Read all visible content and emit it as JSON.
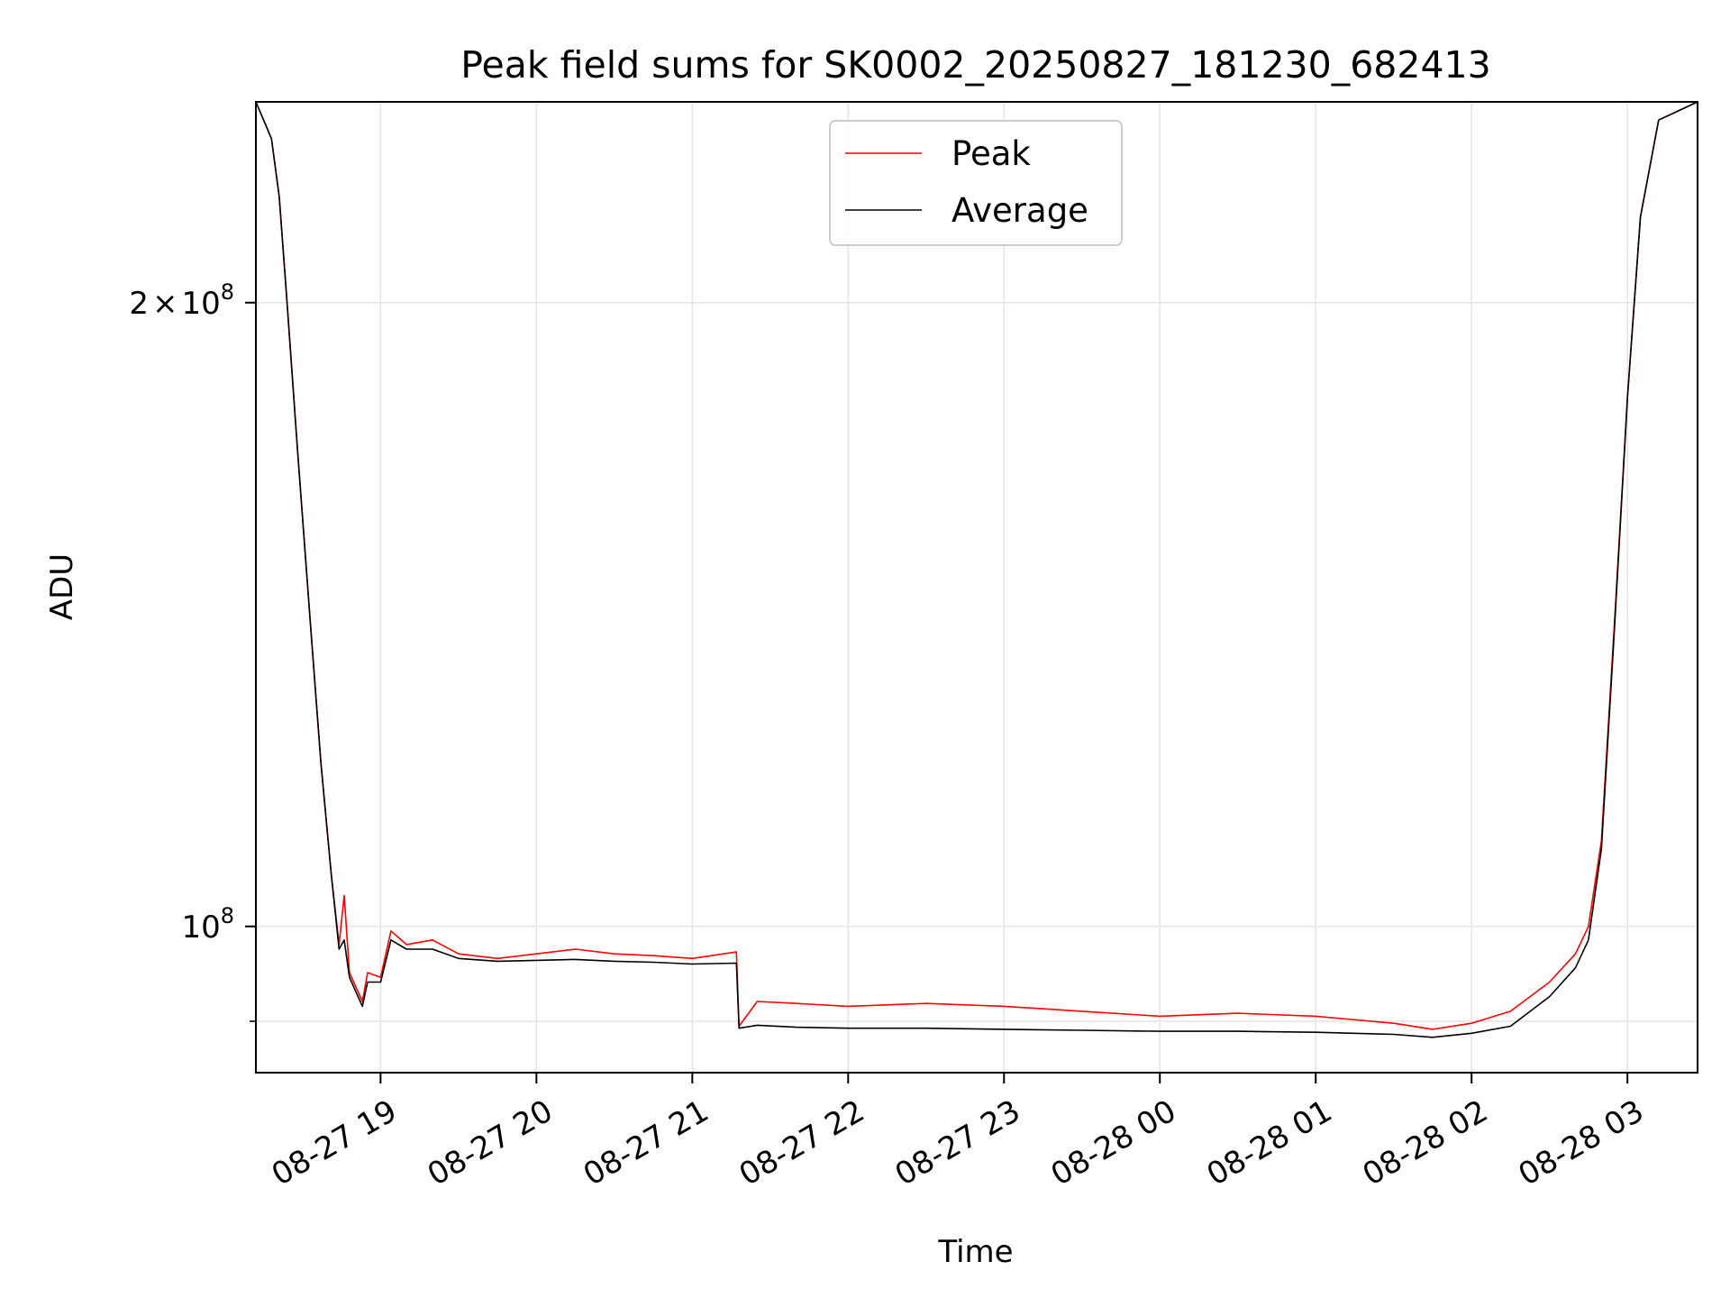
{
  "chart_data": {
    "type": "line",
    "title": "Peak field sums for SK0002_20250827_181230_682413",
    "xlabel": "Time",
    "ylabel": "ADU",
    "y_scale": "log",
    "grid": true,
    "legend_position": "upper center",
    "xlim": [
      "2025-08-27 18:12",
      "2025-08-28 03:27"
    ],
    "ylim": [
      85000000,
      250000000
    ],
    "x_ticks": [
      {
        "value": "2025-08-27 19:00",
        "label": "08-27 19"
      },
      {
        "value": "2025-08-27 20:00",
        "label": "08-27 20"
      },
      {
        "value": "2025-08-27 21:00",
        "label": "08-27 21"
      },
      {
        "value": "2025-08-27 22:00",
        "label": "08-27 22"
      },
      {
        "value": "2025-08-27 23:00",
        "label": "08-27 23"
      },
      {
        "value": "2025-08-28 00:00",
        "label": "08-28 00"
      },
      {
        "value": "2025-08-28 01:00",
        "label": "08-28 01"
      },
      {
        "value": "2025-08-28 02:00",
        "label": "08-28 02"
      },
      {
        "value": "2025-08-28 03:00",
        "label": "08-28 03"
      }
    ],
    "y_ticks": [
      {
        "value": 200000000,
        "mantissa": "2",
        "times": "×",
        "base": "10",
        "exp": "8"
      },
      {
        "value": 100000000,
        "mantissa": "",
        "times": "",
        "base": "10",
        "exp": "8"
      }
    ],
    "y_minor_ticks": [
      90000000
    ],
    "series": [
      {
        "name": "Peak",
        "color": "#ff0000",
        "points": [
          [
            "2025-08-27 18:12",
            250000000
          ],
          [
            "2025-08-27 18:18",
            240000000
          ],
          [
            "2025-08-27 18:21",
            225000000
          ],
          [
            "2025-08-27 18:24",
            200000000
          ],
          [
            "2025-08-27 18:28",
            170000000
          ],
          [
            "2025-08-27 18:33",
            140000000
          ],
          [
            "2025-08-27 18:37",
            120000000
          ],
          [
            "2025-08-27 18:41",
            106000000
          ],
          [
            "2025-08-27 18:44",
            98000000
          ],
          [
            "2025-08-27 18:46",
            103500000
          ],
          [
            "2025-08-27 18:48",
            95000000
          ],
          [
            "2025-08-27 18:53",
            92000000
          ],
          [
            "2025-08-27 18:55",
            95000000
          ],
          [
            "2025-08-27 19:00",
            94500000
          ],
          [
            "2025-08-27 19:04",
            99500000
          ],
          [
            "2025-08-27 19:10",
            98000000
          ],
          [
            "2025-08-27 19:20",
            98500000
          ],
          [
            "2025-08-27 19:30",
            97000000
          ],
          [
            "2025-08-27 19:45",
            96500000
          ],
          [
            "2025-08-27 20:00",
            97000000
          ],
          [
            "2025-08-27 20:15",
            97500000
          ],
          [
            "2025-08-27 20:30",
            97000000
          ],
          [
            "2025-08-27 20:45",
            96800000
          ],
          [
            "2025-08-27 21:00",
            96500000
          ],
          [
            "2025-08-27 21:17",
            97200000
          ],
          [
            "2025-08-27 21:18",
            89500000
          ],
          [
            "2025-08-27 21:25",
            92000000
          ],
          [
            "2025-08-27 21:40",
            91800000
          ],
          [
            "2025-08-27 22:00",
            91500000
          ],
          [
            "2025-08-27 22:30",
            91800000
          ],
          [
            "2025-08-27 23:00",
            91500000
          ],
          [
            "2025-08-27 23:30",
            91000000
          ],
          [
            "2025-08-28 00:00",
            90500000
          ],
          [
            "2025-08-28 00:30",
            90800000
          ],
          [
            "2025-08-28 01:00",
            90500000
          ],
          [
            "2025-08-28 01:30",
            89800000
          ],
          [
            "2025-08-28 01:45",
            89200000
          ],
          [
            "2025-08-28 02:00",
            89800000
          ],
          [
            "2025-08-28 02:15",
            91000000
          ],
          [
            "2025-08-28 02:30",
            94000000
          ],
          [
            "2025-08-28 02:40",
            97000000
          ],
          [
            "2025-08-28 02:45",
            100000000
          ],
          [
            "2025-08-28 02:50",
            110000000
          ],
          [
            "2025-08-28 02:55",
            140000000
          ],
          [
            "2025-08-28 03:00",
            180000000
          ],
          [
            "2025-08-28 03:05",
            220000000
          ],
          [
            "2025-08-28 03:12",
            245000000
          ],
          [
            "2025-08-28 03:27",
            250000000
          ]
        ]
      },
      {
        "name": "Average",
        "color": "#000000",
        "points": [
          [
            "2025-08-27 18:12",
            250000000
          ],
          [
            "2025-08-27 18:18",
            240000000
          ],
          [
            "2025-08-27 18:21",
            225000000
          ],
          [
            "2025-08-27 18:24",
            200000000
          ],
          [
            "2025-08-27 18:28",
            170000000
          ],
          [
            "2025-08-27 18:33",
            140000000
          ],
          [
            "2025-08-27 18:37",
            120000000
          ],
          [
            "2025-08-27 18:41",
            106000000
          ],
          [
            "2025-08-27 18:44",
            97500000
          ],
          [
            "2025-08-27 18:46",
            98500000
          ],
          [
            "2025-08-27 18:48",
            94500000
          ],
          [
            "2025-08-27 18:53",
            91500000
          ],
          [
            "2025-08-27 18:55",
            94000000
          ],
          [
            "2025-08-27 19:00",
            94000000
          ],
          [
            "2025-08-27 19:04",
            98500000
          ],
          [
            "2025-08-27 19:10",
            97500000
          ],
          [
            "2025-08-27 19:20",
            97500000
          ],
          [
            "2025-08-27 19:30",
            96500000
          ],
          [
            "2025-08-27 19:45",
            96200000
          ],
          [
            "2025-08-27 20:00",
            96300000
          ],
          [
            "2025-08-27 20:15",
            96400000
          ],
          [
            "2025-08-27 20:30",
            96200000
          ],
          [
            "2025-08-27 20:45",
            96100000
          ],
          [
            "2025-08-27 21:00",
            95900000
          ],
          [
            "2025-08-27 21:17",
            96000000
          ],
          [
            "2025-08-27 21:18",
            89300000
          ],
          [
            "2025-08-27 21:25",
            89600000
          ],
          [
            "2025-08-27 21:40",
            89400000
          ],
          [
            "2025-08-27 22:00",
            89300000
          ],
          [
            "2025-08-27 22:30",
            89300000
          ],
          [
            "2025-08-27 23:00",
            89200000
          ],
          [
            "2025-08-27 23:30",
            89100000
          ],
          [
            "2025-08-28 00:00",
            89000000
          ],
          [
            "2025-08-28 00:30",
            89000000
          ],
          [
            "2025-08-28 01:00",
            88900000
          ],
          [
            "2025-08-28 01:30",
            88700000
          ],
          [
            "2025-08-28 01:45",
            88400000
          ],
          [
            "2025-08-28 02:00",
            88800000
          ],
          [
            "2025-08-28 02:15",
            89500000
          ],
          [
            "2025-08-28 02:30",
            92500000
          ],
          [
            "2025-08-28 02:40",
            95500000
          ],
          [
            "2025-08-28 02:45",
            98500000
          ],
          [
            "2025-08-28 02:50",
            109000000
          ],
          [
            "2025-08-28 02:55",
            139000000
          ],
          [
            "2025-08-28 03:00",
            180000000
          ],
          [
            "2025-08-28 03:05",
            220000000
          ],
          [
            "2025-08-28 03:12",
            245000000
          ],
          [
            "2025-08-28 03:27",
            250000000
          ]
        ]
      }
    ]
  }
}
